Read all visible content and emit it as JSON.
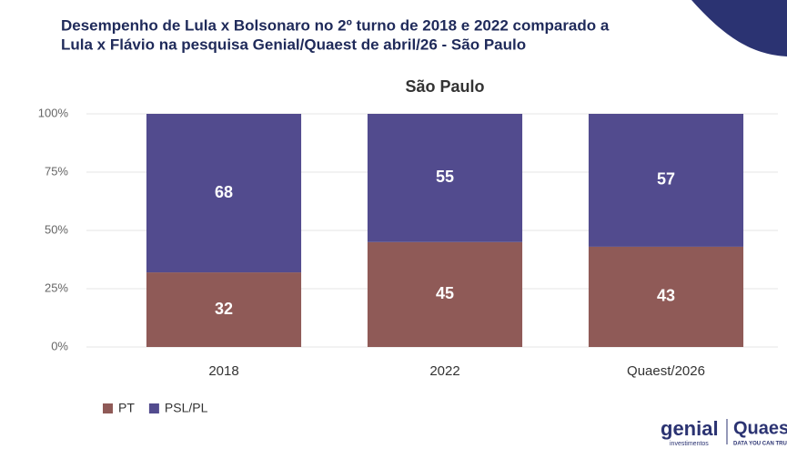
{
  "chart_data": {
    "type": "stacked_bar",
    "title": [
      "Desempenho de Lula x Bolsonaro no 2º turno de 2018 e 2022 comparado a",
      "Lula x Flávio na pesquisa Genial/Quaest de abril/26 - São Paulo"
    ],
    "subtitle": "São Paulo",
    "categories": [
      "2018",
      "2022",
      "Quaest/2026"
    ],
    "series": [
      {
        "name": "PT",
        "color": "#8f5a57",
        "values": [
          32,
          45,
          43
        ]
      },
      {
        "name": "PSL/PL",
        "color": "#524b8e",
        "values": [
          68,
          55,
          57
        ]
      }
    ],
    "ylim": [
      0,
      100
    ],
    "yticks": [
      {
        "value": 0,
        "label": "0%"
      },
      {
        "value": 25,
        "label": "25%"
      },
      {
        "value": 50,
        "label": "50%"
      },
      {
        "value": 75,
        "label": "75%"
      },
      {
        "value": 100,
        "label": "100%"
      }
    ],
    "grid": true,
    "legend": "bottom-left"
  },
  "logos": {
    "genial": "genial",
    "genial_sub": "investimentos",
    "quaest": "Quaes",
    "quaest_sub": "DATA YOU CAN TRU"
  }
}
